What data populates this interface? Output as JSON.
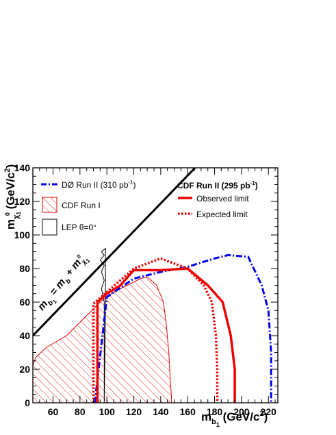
{
  "chart_data": {
    "type": "line",
    "xlim": [
      45,
      227
    ],
    "ylim": [
      0,
      140
    ],
    "x_ticks": [
      "60",
      "80",
      "100",
      "120",
      "140",
      "160",
      "180",
      "200",
      "220"
    ],
    "y_ticks": [
      "0",
      "20",
      "40",
      "60",
      "80",
      "100",
      "120",
      "140"
    ],
    "xlabel": {
      "main": "m",
      "sub1": "b",
      "tilde": "~",
      "sub2": "1",
      "unit": " (GeV/c",
      "sup": "2",
      "close": ")"
    },
    "ylabel": {
      "main": "m",
      "sub": "χ",
      "sub2": "1",
      "sup": "0",
      "unit": " (GeV/c",
      "unit_sup": "2",
      "close": ")"
    },
    "kinematic_line": {
      "label": "m_b1 = m_b + m_chi1",
      "label_parts": {
        "m1": "m",
        "b1": "b",
        "one": "1",
        "eq": " = m",
        "b": "b",
        "plus": " + m",
        "chi": "χ",
        "one2": "1",
        "zero": "0"
      },
      "x": [
        45,
        165.5
      ],
      "y": [
        40,
        140
      ]
    },
    "legend_left": [
      {
        "label": "DØ Run II (310 pb",
        "sup": "-1",
        "close": ")",
        "style": "dashdot",
        "color": "#0000ee"
      },
      {
        "label": "CDF Run I",
        "style": "hatch",
        "color": "#dd0000"
      },
      {
        "label": "LEP θ=0°",
        "style": "box",
        "color": "#000000"
      }
    ],
    "legend_right": {
      "title": "CDF Run II (295 pb",
      "title_sup": "-1",
      "title_close": ")",
      "entries": [
        {
          "label": "Observed limit",
          "style": "solid",
          "color": "#ee0000"
        },
        {
          "label": "Expected limit",
          "style": "dotted",
          "color": "#ee0000"
        }
      ]
    },
    "series": [
      {
        "style": "dashdot",
        "color": "#0000ee",
        "x": [
          91,
          100,
          120,
          140,
          160,
          180,
          190,
          205,
          215,
          220,
          222,
          222
        ],
        "y": [
          0,
          63,
          74,
          78,
          81,
          86,
          88,
          87,
          70,
          55,
          30,
          0
        ]
      },
      {
        "style": "solid",
        "color": "#ee0000",
        "x": [
          93,
          93,
          100,
          110,
          120,
          140,
          160,
          175,
          186,
          192,
          195,
          195
        ],
        "y": [
          0,
          60,
          65,
          70,
          79,
          79,
          80,
          70,
          60,
          40,
          20,
          0
        ]
      },
      {
        "style": "dotted",
        "color": "#ee0000",
        "x": [
          90,
          90,
          100,
          120,
          140,
          150,
          160,
          172,
          178,
          181,
          182,
          182
        ],
        "y": [
          0,
          59,
          66,
          80,
          86,
          83,
          80,
          70,
          60,
          40,
          20,
          0
        ]
      }
    ],
    "cdf_run1_region": {
      "color": "#dd0000",
      "x": [
        45,
        47,
        55,
        70,
        85,
        95,
        105,
        115,
        125,
        130,
        137,
        142,
        144,
        146,
        147,
        148,
        148,
        45
      ],
      "y": [
        22,
        27,
        33,
        40,
        52,
        60,
        66,
        70,
        74,
        75,
        70,
        60,
        48,
        30,
        15,
        3,
        0,
        0
      ]
    },
    "lep_region": {
      "color": "#000000",
      "x": [
        98,
        98,
        96,
        98,
        96,
        98,
        95,
        98,
        96,
        99,
        99,
        98
      ],
      "y": [
        0,
        60,
        68,
        73,
        78,
        82,
        85,
        88,
        90,
        92,
        60,
        0
      ]
    }
  }
}
